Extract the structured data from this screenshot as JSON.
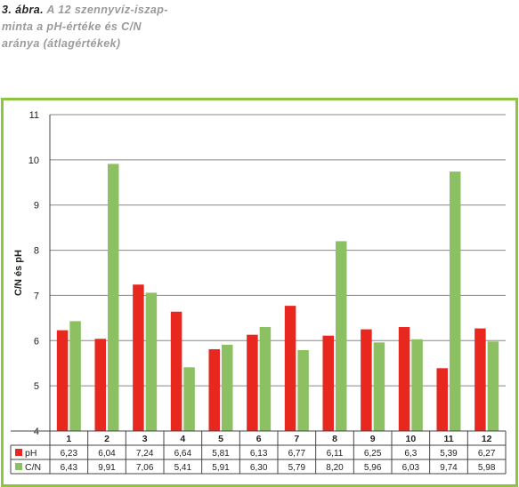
{
  "caption": {
    "figure_label": "3. ábra.",
    "text": "A 12 szennyvíz-iszap-minta a pH-értéke és C/N aránya (átlagértékek)"
  },
  "colors": {
    "frame": "#8cc63e",
    "ph": "#e8281f",
    "cn": "#8dc063",
    "grid": "#888888"
  },
  "chart_data": {
    "type": "bar",
    "title": "",
    "xlabel": "",
    "ylabel": "C/N és pH",
    "ylim": [
      4,
      11
    ],
    "yticks": [
      "4",
      "5",
      "6",
      "7",
      "8",
      "9",
      "10",
      "11"
    ],
    "grid": true,
    "legend": "table-left",
    "categories": [
      "1",
      "2",
      "3",
      "4",
      "5",
      "6",
      "7",
      "8",
      "9",
      "10",
      "11",
      "12"
    ],
    "series": [
      {
        "name": "pH",
        "values": [
          6.23,
          6.04,
          7.24,
          6.64,
          5.81,
          6.13,
          6.77,
          6.11,
          6.25,
          6.3,
          5.39,
          6.27
        ],
        "labels": [
          "6,23",
          "6,04",
          "7,24",
          "6,64",
          "5,81",
          "6,13",
          "6,77",
          "6,11",
          "6,25",
          "6,3",
          "5,39",
          "6,27"
        ]
      },
      {
        "name": "C/N",
        "values": [
          6.43,
          9.91,
          7.06,
          5.41,
          5.91,
          6.3,
          5.79,
          8.2,
          5.96,
          6.03,
          9.74,
          5.98
        ],
        "labels": [
          "6,43",
          "9,91",
          "7,06",
          "5,41",
          "5,91",
          "6,30",
          "5,79",
          "8,20",
          "5,96",
          "6,03",
          "9,74",
          "5,98"
        ]
      }
    ]
  }
}
